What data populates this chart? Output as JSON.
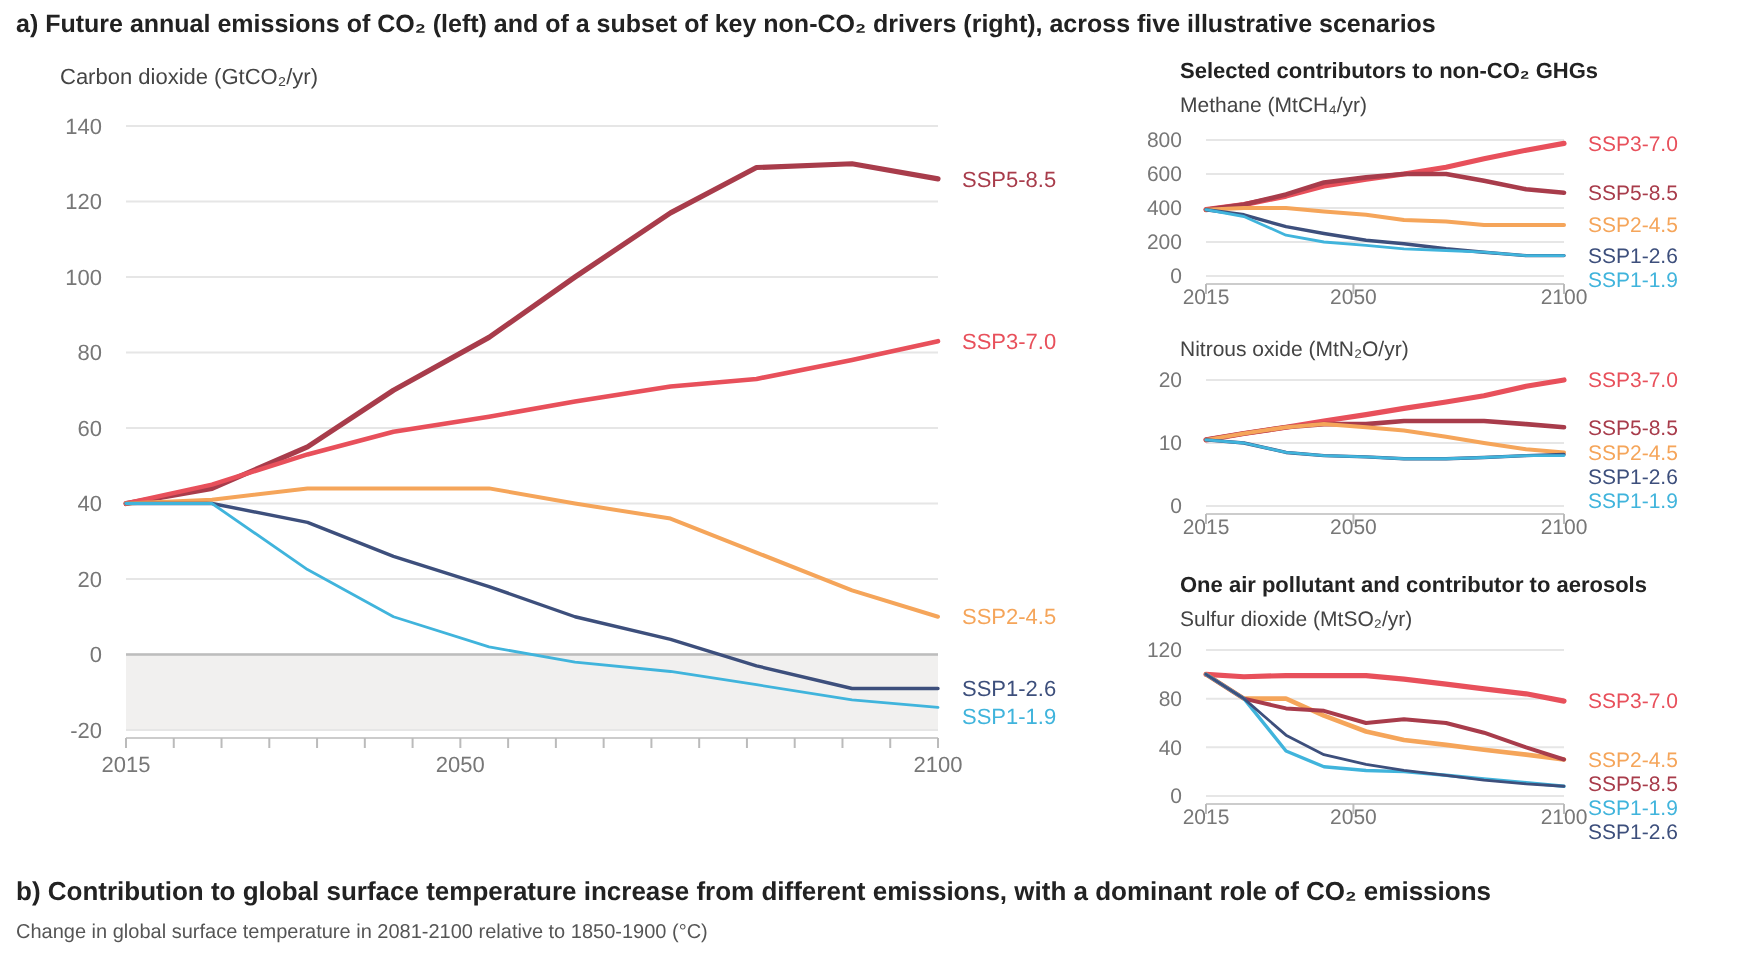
{
  "chart_data": [
    {
      "type": "line",
      "title": "a) Future annual emissions of CO₂ (left) and of a subset of key non-CO₂ drivers (right), across five illustrative scenarios",
      "ylabel": "Carbon dioxide (GtCO₂/yr)",
      "x": [
        2015,
        2024,
        2034,
        2043,
        2053,
        2062,
        2072,
        2081,
        2091,
        2100
      ],
      "xlim": [
        2015,
        2100
      ],
      "xticks": [
        2015,
        {
          "value": 2020,
          "label": null
        },
        {
          "value": 2025,
          "label": null
        },
        {
          "value": 2030,
          "label": null
        },
        {
          "value": 2035,
          "label": null
        },
        {
          "value": 2040,
          "label": null
        },
        {
          "value": 2045,
          "label": null
        },
        2050,
        {
          "value": 2055,
          "label": null
        },
        {
          "value": 2060,
          "label": null
        },
        {
          "value": 2065,
          "label": null
        },
        {
          "value": 2070,
          "label": null
        },
        {
          "value": 2075,
          "label": null
        },
        {
          "value": 2080,
          "label": null
        },
        {
          "value": 2085,
          "label": null
        },
        {
          "value": 2090,
          "label": null
        },
        {
          "value": 2095,
          "label": null
        },
        2100
      ],
      "ylim": [
        -20,
        140
      ],
      "yticks": [
        -20,
        0,
        20,
        40,
        60,
        80,
        100,
        120,
        140
      ],
      "grid": "y",
      "bands": [
        {
          "axis": "y",
          "from": -20,
          "to": 0,
          "color": "#f1f0ef"
        }
      ],
      "ref_lines": [
        {
          "axis": "y",
          "value": 0,
          "color": "#bdbdbd"
        }
      ],
      "annotations": [
        "b) Contribution to global surface temperature increase from different emissions, with a dominant role of CO₂ emissions",
        "Change in global surface temperature in 2081-2100 relative to 1850-1900 (°C)"
      ],
      "series": [
        {
          "name": "SSP5-8.5",
          "color": "#a83c4b",
          "values": [
            40,
            44,
            55,
            70,
            84,
            100,
            117,
            129,
            130,
            126
          ]
        },
        {
          "name": "SSP3-7.0",
          "color": "#e8505b",
          "values": [
            40,
            45,
            53,
            59,
            63,
            67,
            71,
            73,
            78,
            83
          ]
        },
        {
          "name": "SSP2-4.5",
          "color": "#f5a55a",
          "values": [
            40,
            41,
            44,
            44,
            44,
            40,
            36,
            27,
            17,
            10
          ]
        },
        {
          "name": "SSP1-2.6",
          "color": "#3d4f7c",
          "values": [
            40,
            40,
            35,
            26,
            18,
            10,
            4,
            -3,
            -9,
            -9
          ]
        },
        {
          "name": "SSP1-1.9",
          "color": "#40b4dc",
          "values": [
            40,
            40,
            22.5,
            10,
            2,
            -2,
            -4.5,
            -8,
            -12,
            -14
          ]
        }
      ]
    },
    {
      "type": "line",
      "title": "Selected contributors to non-CO₂ GHGs",
      "ylabel": "Methane (MtCH₄/yr)",
      "x": [
        2015,
        2024,
        2034,
        2043,
        2053,
        2062,
        2072,
        2081,
        2091,
        2100
      ],
      "xlim": [
        2015,
        2100
      ],
      "xticks": [
        2015,
        2050,
        2100
      ],
      "ylim": [
        0,
        800
      ],
      "yticks": [
        0,
        200,
        400,
        600,
        800
      ],
      "grid": "y",
      "series": [
        {
          "name": "SSP3-7.0",
          "color": "#e8505b",
          "values": [
            390,
            420,
            470,
            530,
            570,
            600,
            640,
            690,
            740,
            780
          ]
        },
        {
          "name": "SSP5-8.5",
          "color": "#a83c4b",
          "values": [
            390,
            420,
            480,
            550,
            580,
            600,
            600,
            560,
            510,
            490
          ]
        },
        {
          "name": "SSP2-4.5",
          "color": "#f5a55a",
          "values": [
            390,
            400,
            400,
            380,
            360,
            330,
            320,
            300,
            300,
            300
          ]
        },
        {
          "name": "SSP1-2.6",
          "color": "#3d4f7c",
          "values": [
            390,
            360,
            290,
            250,
            210,
            190,
            160,
            140,
            120,
            120
          ]
        },
        {
          "name": "SSP1-1.9",
          "color": "#40b4dc",
          "values": [
            390,
            350,
            240,
            200,
            180,
            160,
            150,
            140,
            120,
            120
          ]
        }
      ]
    },
    {
      "type": "line",
      "ylabel": "Nitrous oxide (MtN₂O/yr)",
      "x": [
        2015,
        2024,
        2034,
        2043,
        2053,
        2062,
        2072,
        2081,
        2091,
        2100
      ],
      "xlim": [
        2015,
        2100
      ],
      "xticks": [
        2015,
        2050,
        2100
      ],
      "ylim": [
        0,
        20
      ],
      "yticks": [
        0,
        10,
        20
      ],
      "grid": "y",
      "series": [
        {
          "name": "SSP3-7.0",
          "color": "#e8505b",
          "values": [
            10.5,
            11.5,
            12.5,
            13.5,
            14.5,
            15.5,
            16.5,
            17.5,
            19,
            20
          ]
        },
        {
          "name": "SSP5-8.5",
          "color": "#a83c4b",
          "values": [
            10.5,
            11.5,
            12.5,
            13,
            13,
            13.5,
            13.5,
            13.5,
            13,
            12.5
          ]
        },
        {
          "name": "SSP2-4.5",
          "color": "#f5a55a",
          "values": [
            10.5,
            11.5,
            12.5,
            13,
            12.5,
            12,
            11,
            10,
            9,
            8.5
          ]
        },
        {
          "name": "SSP1-2.6",
          "color": "#3d4f7c",
          "values": [
            10.5,
            10,
            8.5,
            8,
            7.8,
            7.5,
            7.5,
            7.7,
            8,
            8.2
          ]
        },
        {
          "name": "SSP1-1.9",
          "color": "#40b4dc",
          "values": [
            10.5,
            10,
            8.5,
            8,
            7.8,
            7.5,
            7.5,
            7.7,
            8,
            8
          ]
        }
      ]
    },
    {
      "type": "line",
      "title": "One air pollutant and contributor to aerosols",
      "ylabel": "Sulfur dioxide (MtSO₂/yr)",
      "x": [
        2015,
        2024,
        2034,
        2043,
        2053,
        2062,
        2072,
        2081,
        2091,
        2100
      ],
      "xlim": [
        2015,
        2100
      ],
      "xticks": [
        2015,
        2050,
        2100
      ],
      "ylim": [
        0,
        120
      ],
      "yticks": [
        0,
        40,
        80,
        120
      ],
      "grid": "y",
      "series": [
        {
          "name": "SSP3-7.0",
          "color": "#e8505b",
          "values": [
            100,
            98,
            99,
            99,
            99,
            96,
            92,
            88,
            84,
            78
          ]
        },
        {
          "name": "SSP2-4.5",
          "color": "#f5a55a",
          "values": [
            100,
            80,
            80,
            66,
            53,
            46,
            42,
            38,
            34,
            30
          ]
        },
        {
          "name": "SSP5-8.5",
          "color": "#a83c4b",
          "values": [
            100,
            80,
            72,
            70,
            60,
            63,
            60,
            52,
            40,
            30
          ]
        },
        {
          "name": "SSP1-1.9",
          "color": "#40b4dc",
          "values": [
            100,
            80,
            37,
            24,
            21,
            20,
            17,
            14,
            11,
            8
          ]
        },
        {
          "name": "SSP1-2.6",
          "color": "#3d4f7c",
          "values": [
            100,
            80,
            50,
            34,
            26,
            21,
            17,
            13,
            10,
            8
          ]
        }
      ]
    }
  ]
}
